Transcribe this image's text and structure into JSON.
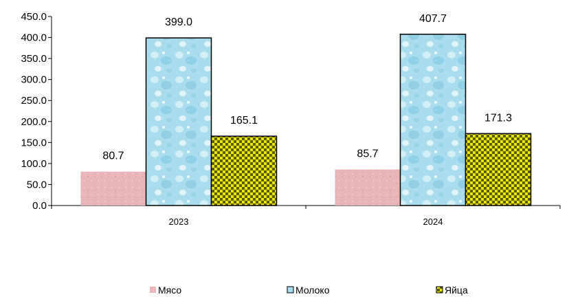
{
  "chart_data": {
    "type": "bar",
    "title": "",
    "xlabel": "",
    "ylabel": "",
    "categories": [
      "2023",
      "2024"
    ],
    "series": [
      {
        "name": "Мясо",
        "values": [
          80.7,
          85.7
        ],
        "color": "#e8b6b8"
      },
      {
        "name": "Молоко",
        "values": [
          399.0,
          407.7
        ],
        "color": "#a9dced"
      },
      {
        "name": "Яйца",
        "values": [
          165.1,
          171.3
        ],
        "color": "#e8e600"
      }
    ],
    "data_labels": [
      [
        "80.7",
        "85.7"
      ],
      [
        "399.0",
        "407.7"
      ],
      [
        "165.1",
        "171.3"
      ]
    ],
    "y_ticks": [
      "0.0",
      "50.0",
      "100.0",
      "150.0",
      "200.0",
      "250.0",
      "300.0",
      "350.0",
      "400.0",
      "450.0"
    ],
    "ylim": [
      0,
      450
    ],
    "grid": false,
    "legend_position": "bottom"
  }
}
